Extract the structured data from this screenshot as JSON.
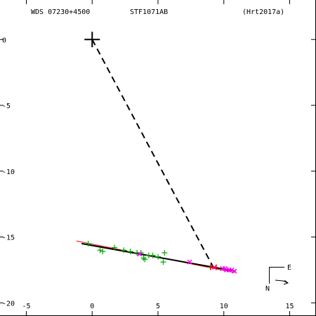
{
  "header": {
    "system": "WDS 07230+4500",
    "discoverer": "STF1071AB",
    "orbit_ref": "(Hrt2017a)"
  },
  "compass": {
    "east_label": "E",
    "north_label": "N"
  },
  "colors": {
    "axes": "#000000",
    "orbit": "#000000",
    "linear_fit": "#ff0000",
    "micrometric_obs": "#00aa00",
    "speckle_obs": "#ff00ff",
    "primary_marker": "#000000"
  },
  "chart_data": {
    "type": "scatter",
    "title": "",
    "xlabel": "",
    "ylabel": "",
    "xlim": [
      -7,
      17
    ],
    "ylim": [
      -21,
      3
    ],
    "x_ticks": [
      -5,
      0,
      5,
      10,
      15
    ],
    "x_tick_labels": [
      "-5",
      "0",
      "5",
      "10",
      "15"
    ],
    "y_ticks": [
      0,
      -5,
      -10,
      -15,
      -20
    ],
    "y_tick_labels": [
      "0",
      "-5",
      "-10",
      "-15",
      "-20"
    ],
    "grid": false,
    "primary": {
      "x": 0,
      "y": 0
    },
    "orbit_arc": {
      "x": [
        -0.8,
        10.9
      ],
      "y": [
        -15.5,
        -17.6
      ]
    },
    "linear_fit": {
      "x": [
        -1.2,
        10.8
      ],
      "y": [
        -15.3,
        -17.7
      ]
    },
    "periastron_connector": {
      "x": [
        0,
        9.2
      ],
      "y": [
        0,
        -17.3
      ]
    },
    "series": [
      {
        "marker": "plus",
        "color": "#00aa00",
        "x": [
          -0.3,
          0.6,
          0.8,
          1.7,
          2.4,
          2.9,
          3.4,
          3.7,
          3.9,
          4.0,
          4.3,
          4.6,
          5.0,
          5.4,
          5.5,
          9.0
        ],
        "y": [
          -15.5,
          -16.0,
          -16.1,
          -15.8,
          -16.0,
          -16.1,
          -16.2,
          -16.2,
          -16.6,
          -16.7,
          -16.4,
          -16.4,
          -16.5,
          -16.9,
          -16.2,
          -17.3
        ]
      },
      {
        "marker": "cross",
        "color": "#ff00ff",
        "x": [
          3.6,
          7.4,
          9.3,
          9.9,
          10.1,
          10.2,
          10.4,
          10.6,
          10.8
        ],
        "y": [
          -16.3,
          -16.9,
          -17.3,
          -17.4,
          -17.4,
          -17.5,
          -17.5,
          -17.5,
          -17.6
        ]
      },
      {
        "marker": "box",
        "color": "#ff0000",
        "x": [
          9.2
        ],
        "y": [
          -17.3
        ]
      }
    ]
  }
}
